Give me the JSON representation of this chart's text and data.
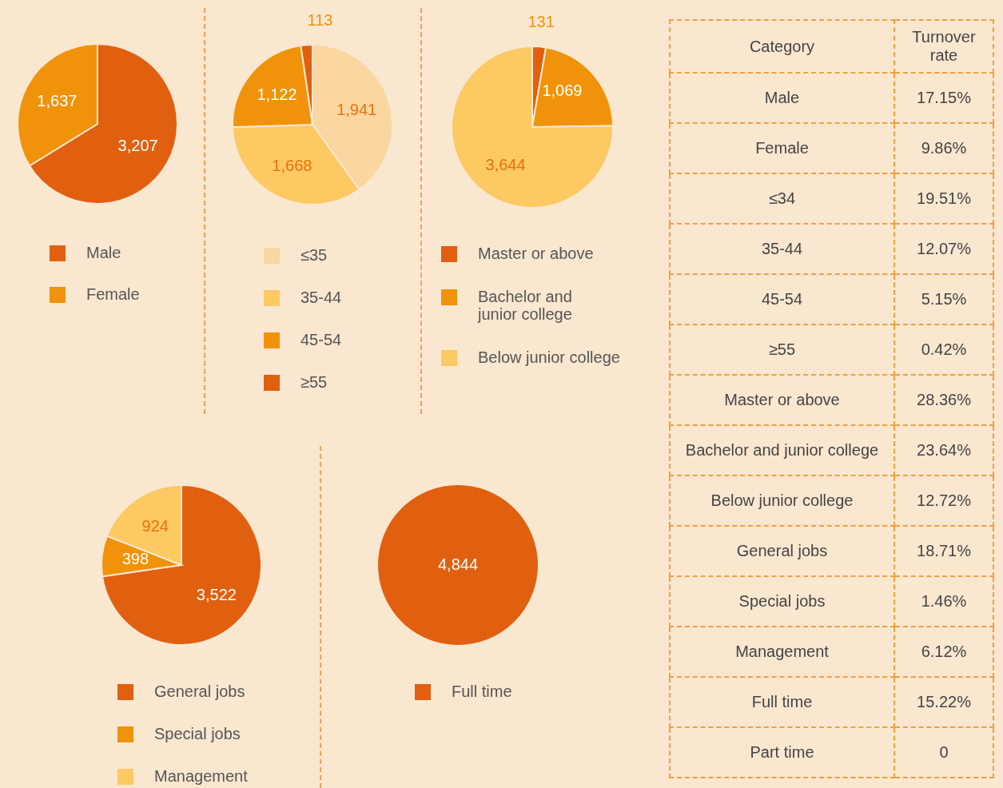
{
  "chart_data": [
    {
      "type": "pie",
      "categories": [
        "Male",
        "Female"
      ],
      "values": [
        3207,
        1637
      ],
      "colors": [
        "#e0600f",
        "#f0930a"
      ],
      "value_labels": [
        "3,207",
        "1,637"
      ],
      "legend": "bottom"
    },
    {
      "type": "pie",
      "categories": [
        "≤35",
        "35-44",
        "45-54",
        "≥55"
      ],
      "values": [
        1941,
        1668,
        1122,
        113
      ],
      "colors": [
        "#fad7a0",
        "#fcc962",
        "#f0930a",
        "#e0600f"
      ],
      "value_labels": [
        "1,941",
        "1,668",
        "1,122",
        "113"
      ],
      "legend": "bottom"
    },
    {
      "type": "pie",
      "categories": [
        "Master or above",
        "Bachelor and junior college",
        "Below junior college"
      ],
      "values": [
        131,
        1069,
        3644
      ],
      "colors": [
        "#e0600f",
        "#f0930a",
        "#fcc962"
      ],
      "value_labels": [
        "131",
        "1,069",
        "3,644"
      ],
      "legend": "bottom"
    },
    {
      "type": "pie",
      "categories": [
        "General jobs",
        "Special jobs",
        "Management"
      ],
      "values": [
        3522,
        398,
        924
      ],
      "colors": [
        "#e0600f",
        "#f0930a",
        "#fcc962"
      ],
      "value_labels": [
        "3,522",
        "398",
        "924"
      ],
      "legend": "bottom"
    },
    {
      "type": "pie",
      "categories": [
        "Full time"
      ],
      "values": [
        4844
      ],
      "colors": [
        "#e0600f"
      ],
      "value_labels": [
        "4,844"
      ],
      "legend": "bottom"
    },
    {
      "type": "other",
      "annotations": [
        "Category",
        "Turnover rate",
        "Male",
        "17.15%",
        "Female",
        "9.86%",
        "≤34",
        "19.51%",
        "35-44",
        "12.07%",
        "45-54",
        "5.15%",
        "≥55",
        "0.42%",
        "Master or above",
        "28.36%",
        "Bachelor and junior college",
        "23.64%",
        "Below junior college",
        "12.72%",
        "General jobs",
        "18.71%",
        "Special jobs",
        "1.46%",
        "Management",
        "6.12%",
        "Full time",
        "15.22%",
        "Part time",
        "0"
      ]
    }
  ]
}
